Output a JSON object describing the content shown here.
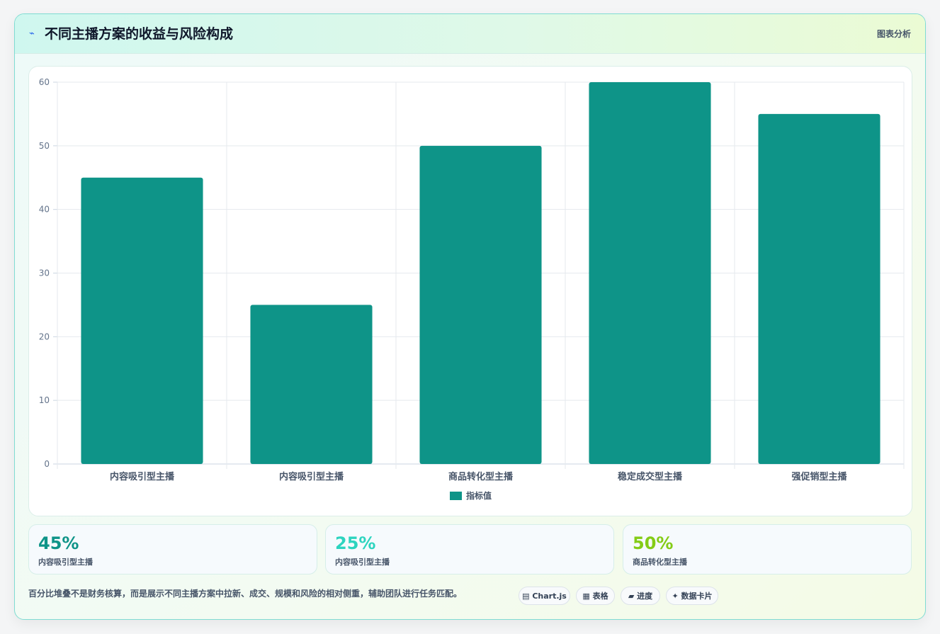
{
  "header": {
    "icon": "lightning-icon",
    "icon_glyph": "⌁",
    "title": "不同主播方案的收益与风险构成",
    "tag": "图表分析"
  },
  "chart_data": {
    "type": "bar",
    "categories": [
      "内容吸引型主播",
      "内容吸引型主播",
      "商品转化型主播",
      "稳定成交型主播",
      "强促销型主播"
    ],
    "series": [
      {
        "name": "指标值",
        "values": [
          45,
          25,
          50,
          60,
          55
        ],
        "color": "#0e9488"
      }
    ],
    "ylim": [
      0,
      60
    ],
    "yticks": [
      0,
      10,
      20,
      30,
      40,
      50,
      60
    ],
    "grid": true,
    "legend": "bottom"
  },
  "stats": [
    {
      "value": "45%",
      "label": "内容吸引型主播",
      "color": "#0e9488"
    },
    {
      "value": "25%",
      "label": "内容吸引型主播",
      "color": "#2dd4bf"
    },
    {
      "value": "50%",
      "label": "商品转化型主播",
      "color": "#84cc16"
    }
  ],
  "footnote": "百分比堆叠不是财务核算，而是展示不同主播方案中拉新、成交、规模和风险的相对侧重，辅助团队进行任务匹配。",
  "chips": [
    {
      "label": "▤ Chart.js",
      "icon": "chart-icon"
    },
    {
      "label": "▦ 表格",
      "icon": "table-icon"
    },
    {
      "label": "▰ 进度",
      "icon": "progress-icon"
    },
    {
      "label": "✦ 数据卡片",
      "icon": "sparkle-icon"
    }
  ]
}
